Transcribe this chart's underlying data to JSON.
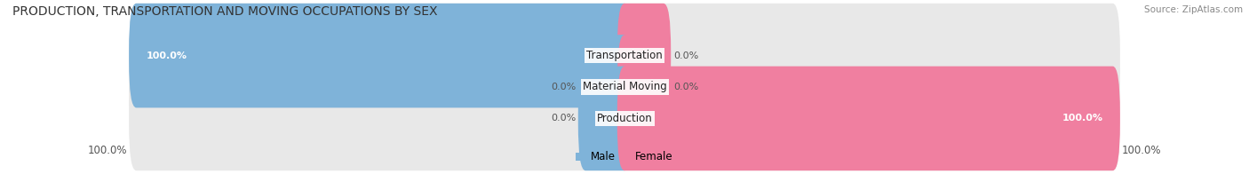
{
  "title": "PRODUCTION, TRANSPORTATION AND MOVING OCCUPATIONS BY SEX",
  "source": "Source: ZipAtlas.com",
  "categories": [
    "Transportation",
    "Material Moving",
    "Production"
  ],
  "male_values": [
    100.0,
    0.0,
    0.0
  ],
  "female_values": [
    0.0,
    0.0,
    100.0
  ],
  "male_color": "#7fb3d9",
  "female_color": "#f07fa0",
  "bar_bg_color": "#e8e8e8",
  "male_label": "Male",
  "female_label": "Female",
  "title_fontsize": 10,
  "source_fontsize": 7.5,
  "tick_fontsize": 8.5,
  "bar_label_fontsize": 8,
  "cat_label_fontsize": 8.5,
  "fig_width": 14.06,
  "fig_height": 1.96,
  "fig_bg_color": "#ffffff"
}
